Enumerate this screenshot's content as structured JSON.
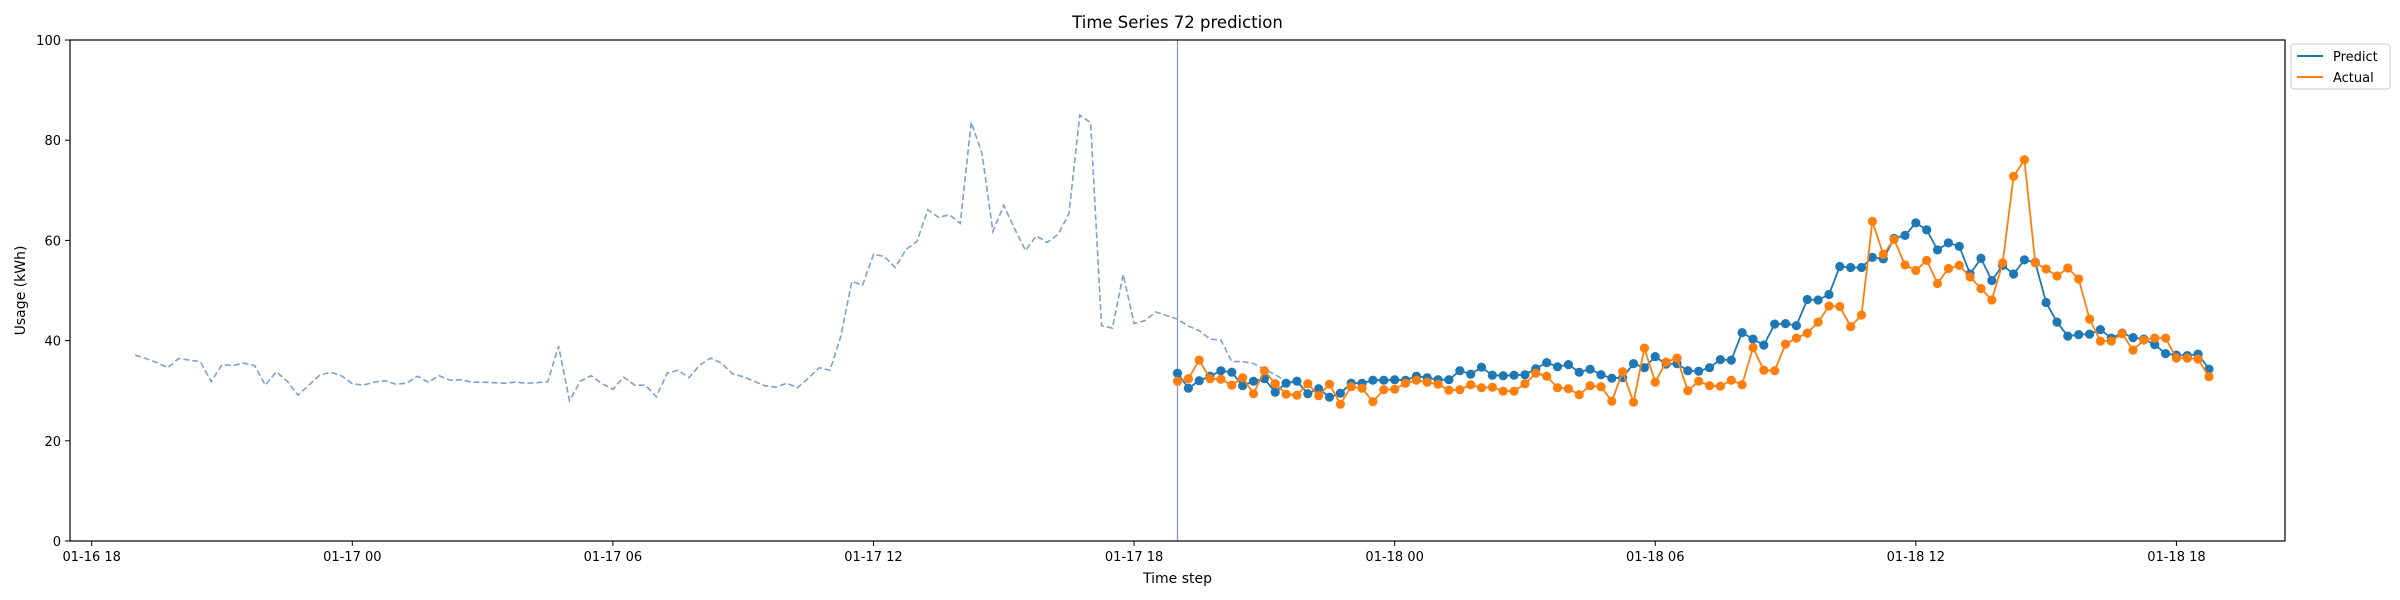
{
  "chart_data": {
    "type": "line",
    "title": "Time Series 72 prediction",
    "xlabel": "Time step",
    "ylabel": "Usage (kWh)",
    "ylim": [
      0,
      100
    ],
    "yticks": [
      0,
      20,
      40,
      60,
      80,
      100
    ],
    "xlim": [
      "2024-01-16T17:30",
      "2024-01-18T20:30"
    ],
    "xtick_values": [
      "2024-01-16T18:00",
      "2024-01-17T00:00",
      "2024-01-17T06:00",
      "2024-01-17T12:00",
      "2024-01-17T18:00",
      "2024-01-18T00:00",
      "2024-01-18T06:00",
      "2024-01-18T12:00",
      "2024-01-18T18:00"
    ],
    "xtick_labels": [
      "01-16 18",
      "01-17 00",
      "01-17 06",
      "01-17 12",
      "01-17 18",
      "01-18 00",
      "01-18 06",
      "01-18 12",
      "01-18 18"
    ],
    "grid": false,
    "legend_position": "outside-top-right",
    "forecast_start": "2024-01-17T19:00",
    "colors": {
      "history": "#7f9fd0",
      "predict": "#1f77b4",
      "actual": "#ff7f0e",
      "divider": "#7f9fd0"
    },
    "history": {
      "x_start": "2024-01-16T19:00",
      "x_step_minutes": 15,
      "values": [
        37.1,
        36.4,
        35.6,
        34.6,
        36.4,
        36.1,
        35.8,
        31.8,
        35.2,
        35.0,
        35.5,
        35.0,
        31.1,
        33.8,
        31.9,
        29.1,
        31.1,
        33.1,
        33.7,
        33.0,
        31.4,
        31.1,
        31.7,
        32.0,
        31.3,
        31.5,
        32.9,
        31.7,
        33.0,
        32.1,
        32.2,
        31.7,
        31.7,
        31.6,
        31.5,
        31.7,
        31.5,
        31.6,
        31.8,
        38.9,
        28.0,
        31.9,
        33.0,
        31.4,
        30.3,
        32.7,
        31.1,
        31.1,
        28.8,
        33.5,
        34.1,
        32.6,
        35.1,
        36.5,
        35.5,
        33.4,
        32.8,
        31.9,
        31.0,
        30.7,
        31.5,
        30.6,
        32.5,
        34.6,
        34.1,
        40.9,
        51.8,
        51.1,
        57.2,
        56.8,
        54.6,
        58.2,
        59.8,
        66.1,
        64.6,
        65.1,
        63.4,
        83.6,
        77.3,
        61.8,
        67.0,
        62.3,
        58.0,
        60.9,
        59.6,
        61.2,
        65.3,
        85.0,
        83.5,
        43.0,
        42.5,
        53.2,
        43.4,
        44.0,
        45.7,
        45.0,
        44.3,
        42.9,
        42.0,
        40.3,
        40.1,
        35.8,
        35.8,
        35.4,
        34.3,
        33.2,
        31.9
      ],
      "line_style": "dashed"
    },
    "series": [
      {
        "name": "Predict",
        "x_start": "2024-01-17T19:00",
        "x_step_minutes": 15,
        "values": [
          33.5,
          30.5,
          32.0,
          32.9,
          34.0,
          33.7,
          31.0,
          31.9,
          32.4,
          29.7,
          31.5,
          31.9,
          29.4,
          30.4,
          28.7,
          29.5,
          31.5,
          31.5,
          32.1,
          32.1,
          32.2,
          32.1,
          32.9,
          32.6,
          32.2,
          32.2,
          34.0,
          33.3,
          34.7,
          33.1,
          33.0,
          33.1,
          33.2,
          34.4,
          35.6,
          34.8,
          35.2,
          33.7,
          34.3,
          33.2,
          32.5,
          32.6,
          35.4,
          34.6,
          36.8,
          35.3,
          35.4,
          34.0,
          33.9,
          34.6,
          36.2,
          36.1,
          41.6,
          40.3,
          39.1,
          43.3,
          43.4,
          43.0,
          48.2,
          48.1,
          49.2,
          54.8,
          54.6,
          54.6,
          56.6,
          56.3,
          60.4,
          61.0,
          63.5,
          62.1,
          58.1,
          59.5,
          58.8,
          53.3,
          56.4,
          52.0,
          55.0,
          53.3,
          56.1,
          55.6,
          47.6,
          43.7,
          40.9,
          41.2,
          41.3,
          42.2,
          40.5,
          41.5,
          40.6,
          40.3,
          39.2,
          37.4,
          37.1,
          37.0,
          37.3,
          34.3
        ],
        "marker": "circle"
      },
      {
        "name": "Actual",
        "x_start": "2024-01-17T19:00",
        "x_step_minutes": 15,
        "values": [
          31.9,
          32.4,
          36.1,
          32.4,
          32.3,
          31.1,
          32.6,
          29.4,
          34.0,
          31.4,
          29.3,
          29.1,
          31.4,
          29.0,
          31.3,
          27.3,
          30.8,
          30.5,
          27.8,
          30.2,
          30.3,
          31.5,
          32.1,
          31.7,
          31.3,
          30.1,
          30.2,
          31.2,
          30.6,
          30.7,
          29.9,
          29.9,
          31.4,
          33.5,
          32.9,
          30.6,
          30.4,
          29.2,
          31.0,
          30.8,
          27.9,
          33.8,
          27.7,
          38.5,
          31.7,
          35.7,
          36.5,
          30.0,
          31.9,
          31.0,
          30.9,
          32.1,
          31.2,
          38.6,
          34.1,
          34.0,
          39.3,
          40.5,
          41.5,
          43.7,
          46.9,
          46.8,
          42.8,
          45.1,
          63.8,
          57.2,
          60.2,
          55.1,
          54.0,
          56.0,
          51.4,
          54.4,
          55.0,
          52.7,
          50.4,
          48.1,
          55.5,
          72.8,
          76.1,
          55.5,
          54.3,
          52.9,
          54.5,
          52.3,
          44.3,
          39.9,
          39.9,
          41.4,
          38.1,
          40.1,
          40.5,
          40.5,
          36.5,
          36.5,
          36.3,
          32.8
        ],
        "marker": "circle"
      }
    ]
  }
}
